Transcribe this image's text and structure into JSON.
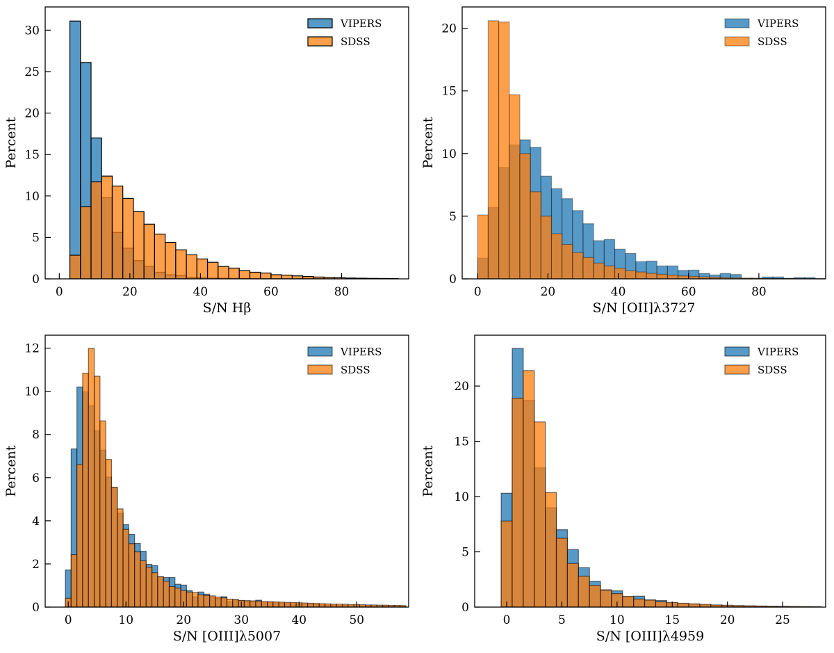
{
  "colors": {
    "VIPERS": "#1f77b4",
    "SDSS": "#ff7f0e"
  },
  "chart_data": [
    {
      "type": "bar",
      "subtype": "histogram",
      "xlabel": "S/N Hβ",
      "ylabel": "Percent",
      "xlim": [
        -4,
        99
      ],
      "ylim": [
        0,
        32.8
      ],
      "xticks": [
        0,
        20,
        40,
        60,
        80
      ],
      "yticks": [
        0,
        5,
        10,
        15,
        20,
        25,
        30
      ],
      "legend": "top-right",
      "grid": false,
      "bin_start": 3,
      "bin_width": 3,
      "series": [
        {
          "name": "VIPERS",
          "values": [
            31.1,
            26.1,
            17.0,
            9.8,
            5.6,
            3.7,
            2.2,
            1.5,
            0.8,
            0.5,
            0.4,
            0.2,
            0.15,
            0.1,
            0.08,
            0.06,
            0.05,
            0.04,
            0.03,
            0.02,
            0.02,
            0.01,
            0.01,
            0.01,
            0,
            0,
            0,
            0,
            0,
            0,
            0
          ]
        },
        {
          "name": "SDSS",
          "values": [
            2.85,
            8.7,
            11.7,
            12.4,
            11.2,
            9.7,
            8.1,
            6.6,
            5.4,
            4.4,
            3.5,
            2.9,
            2.4,
            2.0,
            1.5,
            1.3,
            1.0,
            0.8,
            0.7,
            0.5,
            0.45,
            0.36,
            0.28,
            0.22,
            0.17,
            0.14,
            0.1,
            0.08,
            0.06,
            0.05,
            0.04
          ]
        }
      ]
    },
    {
      "type": "bar",
      "subtype": "histogram",
      "xlabel": "S/N [OII]λ3727",
      "ylabel": "Percent",
      "xlim": [
        -4.4,
        99
      ],
      "ylim": [
        0,
        21.7
      ],
      "xticks": [
        0,
        20,
        40,
        60,
        80
      ],
      "yticks": [
        0,
        5,
        10,
        15,
        20
      ],
      "legend": "top-right",
      "grid": false,
      "bin_start": 0,
      "bin_width": 3,
      "series": [
        {
          "name": "VIPERS",
          "values": [
            1.66,
            5.7,
            8.9,
            10.7,
            11.1,
            10.5,
            8.2,
            7.2,
            6.4,
            5.45,
            4.4,
            3.05,
            3.14,
            2.37,
            2.03,
            1.37,
            1.42,
            1.03,
            1.03,
            0.67,
            0.7,
            0.43,
            0.31,
            0.43,
            0.35,
            0.05,
            0.05,
            0.15,
            0.15,
            0.05,
            0.1,
            0.1,
            0.02
          ]
        },
        {
          "name": "SDSS",
          "values": [
            5.1,
            20.6,
            20.5,
            14.7,
            10.0,
            6.95,
            5.0,
            3.6,
            2.75,
            2.1,
            1.7,
            1.26,
            1.03,
            0.85,
            0.65,
            0.55,
            0.44,
            0.37,
            0.3,
            0.24,
            0.2,
            0.16,
            0.13,
            0.1,
            0.08,
            0.06,
            0.05,
            0.04,
            0.03,
            0.03,
            0.02,
            0.02,
            0.01
          ]
        }
      ]
    },
    {
      "type": "bar",
      "subtype": "histogram",
      "xlabel": "S/N [OIII]λ5007",
      "ylabel": "Percent",
      "xlim": [
        -4,
        59
      ],
      "ylim": [
        0,
        12.6
      ],
      "xticks": [
        0,
        10,
        20,
        30,
        40,
        50
      ],
      "yticks": [
        0,
        2,
        4,
        6,
        8,
        10,
        12
      ],
      "legend": "top-right",
      "grid": false,
      "bin_start": -0.5,
      "bin_width": 1,
      "series": [
        {
          "name": "VIPERS",
          "values": [
            1.72,
            7.33,
            10.2,
            9.98,
            9.33,
            8.17,
            7.27,
            6.03,
            5.55,
            4.35,
            3.82,
            3.37,
            2.95,
            2.59,
            1.98,
            1.92,
            1.41,
            1.37,
            1.37,
            1.06,
            1.02,
            0.76,
            0.48,
            0.7,
            0.6,
            0.46,
            0.41,
            0.48,
            0.25,
            0.34,
            0.3,
            0.28,
            0.27,
            0.32,
            0.2,
            0.22,
            0.2,
            0.18,
            0.17,
            0.15,
            0.14,
            0.13,
            0.12,
            0.11,
            0.1,
            0.1,
            0.09,
            0.08,
            0.08,
            0.07,
            0.07,
            0.06,
            0.06,
            0.05,
            0.05,
            0.05,
            0.04,
            0.04,
            0.04
          ]
        },
        {
          "name": "SDSS",
          "values": [
            0.41,
            2.43,
            6.61,
            10.84,
            11.99,
            10.7,
            8.63,
            6.84,
            5.55,
            4.55,
            3.6,
            2.94,
            2.56,
            2.15,
            1.85,
            1.59,
            1.41,
            1.2,
            0.95,
            0.88,
            0.77,
            0.7,
            0.68,
            0.57,
            0.54,
            0.52,
            0.47,
            0.43,
            0.37,
            0.35,
            0.31,
            0.3,
            0.29,
            0.28,
            0.26,
            0.25,
            0.24,
            0.23,
            0.22,
            0.21,
            0.2,
            0.19,
            0.18,
            0.17,
            0.16,
            0.15,
            0.14,
            0.14,
            0.13,
            0.12,
            0.12,
            0.11,
            0.1,
            0.1,
            0.09,
            0.09,
            0.08,
            0.08,
            0.07
          ]
        }
      ]
    },
    {
      "type": "bar",
      "subtype": "histogram",
      "xlabel": "S/N [OIII]λ4959",
      "ylabel": "Percent",
      "xlim": [
        -2.9,
        28.9
      ],
      "ylim": [
        0,
        24.6
      ],
      "xticks": [
        0,
        5,
        10,
        15,
        20,
        25
      ],
      "yticks": [
        0,
        5,
        10,
        15,
        20
      ],
      "legend": "top-right",
      "grid": false,
      "bin_start": -0.5,
      "bin_width": 1,
      "series": [
        {
          "name": "VIPERS",
          "values": [
            10.3,
            23.4,
            18.7,
            12.6,
            9.0,
            7.0,
            5.2,
            3.57,
            2.33,
            1.57,
            1.47,
            0.94,
            0.99,
            0.65,
            0.59,
            0.38,
            0.3,
            0.25,
            0.2,
            0.15,
            0.12,
            0.1,
            0.08,
            0.07,
            0.05,
            0.04,
            0.03,
            0.02,
            0.02
          ]
        },
        {
          "name": "SDSS",
          "values": [
            7.79,
            18.9,
            21.4,
            16.75,
            10.37,
            6.23,
            3.95,
            2.8,
            1.97,
            1.53,
            1.22,
            0.97,
            0.73,
            0.63,
            0.48,
            0.42,
            0.35,
            0.3,
            0.25,
            0.2,
            0.17,
            0.14,
            0.12,
            0.1,
            0.08,
            0.07,
            0.06,
            0.05,
            0.04
          ]
        }
      ]
    }
  ]
}
